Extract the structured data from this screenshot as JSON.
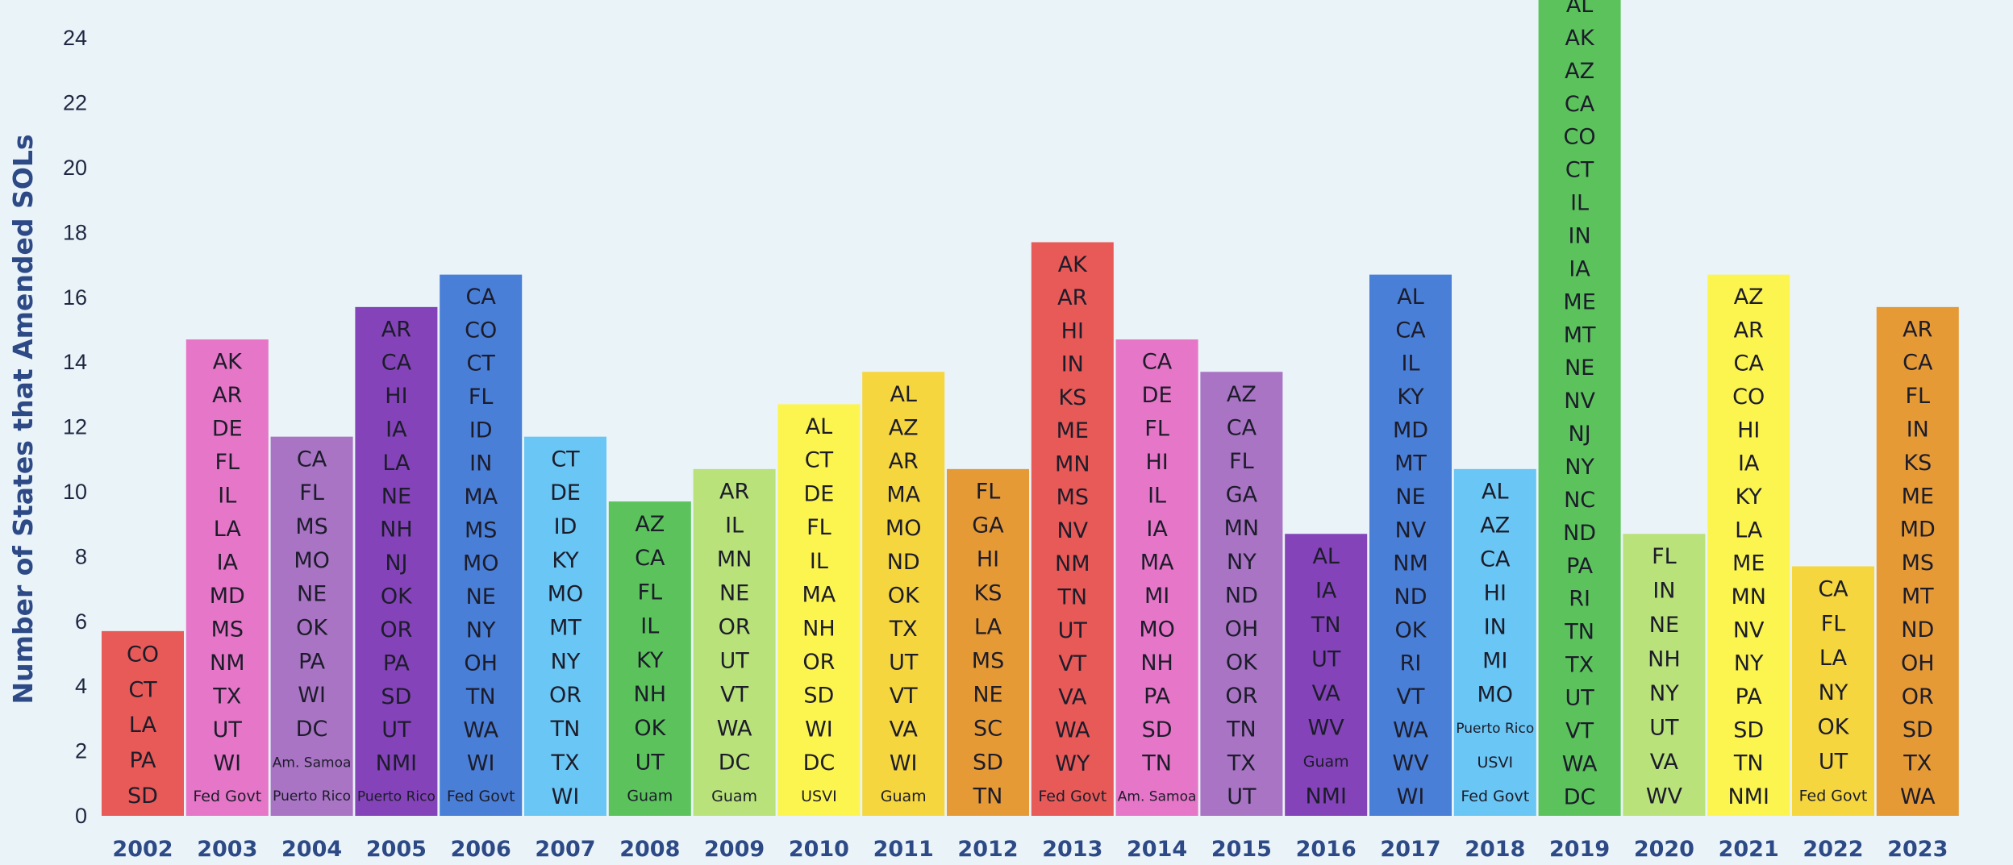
{
  "chart_data": {
    "type": "bar",
    "title": "",
    "xlabel": "",
    "ylabel": "Number of States that Amended SOLs",
    "ylim": [
      0,
      24
    ],
    "yticks": [
      0,
      2,
      4,
      6,
      8,
      10,
      12,
      14,
      16,
      18,
      20,
      22,
      24
    ],
    "grid": false,
    "legend": "none",
    "categories": [
      "2002",
      "2003",
      "2004",
      "2005",
      "2006",
      "2007",
      "2008",
      "2009",
      "2010",
      "2011",
      "2012",
      "2013",
      "2014",
      "2015",
      "2016",
      "2017",
      "2018",
      "2019",
      "2020",
      "2021",
      "2022",
      "2023"
    ],
    "values": [
      5,
      14,
      11,
      15,
      16,
      11,
      9,
      10,
      12,
      13,
      10,
      17,
      14,
      13,
      8,
      16,
      10,
      25,
      8,
      16,
      7,
      15
    ],
    "colors": [
      "#e85a57",
      "#e676c7",
      "#a974c4",
      "#8443b9",
      "#4a7fd7",
      "#6ac6f4",
      "#5cc35c",
      "#b9e27a",
      "#fdf54f",
      "#f6d63e",
      "#e69a35",
      "#e85a57",
      "#e676c7",
      "#a974c4",
      "#8443b9",
      "#4a7fd7",
      "#6ac6f4",
      "#5cc35c",
      "#b9e27a",
      "#fdf54f",
      "#f6d63e",
      "#e69a35"
    ],
    "states": [
      [
        "CO",
        "CT",
        "LA",
        "PA",
        "SD"
      ],
      [
        "AK",
        "AR",
        "DE",
        "FL",
        "IL",
        "LA",
        "IA",
        "MD",
        "MS",
        "NM",
        "TX",
        "UT",
        "WI",
        "Fed Govt"
      ],
      [
        "CA",
        "FL",
        "MS",
        "MO",
        "NE",
        "OK",
        "PA",
        "WI",
        "DC",
        "Am. Samoa",
        "Puerto Rico"
      ],
      [
        "AR",
        "CA",
        "HI",
        "IA",
        "LA",
        "NE",
        "NH",
        "NJ",
        "OK",
        "OR",
        "PA",
        "SD",
        "UT",
        "NMI",
        "Puerto Rico"
      ],
      [
        "CA",
        "CO",
        "CT",
        "FL",
        "ID",
        "IN",
        "MA",
        "MS",
        "MO",
        "NE",
        "NY",
        "OH",
        "TN",
        "WA",
        "WI",
        "Fed Govt"
      ],
      [
        "CT",
        "DE",
        "ID",
        "KY",
        "MO",
        "MT",
        "NY",
        "OR",
        "TN",
        "TX",
        "WI"
      ],
      [
        "AZ",
        "CA",
        "FL",
        "IL",
        "KY",
        "NH",
        "OK",
        "UT",
        "Guam"
      ],
      [
        "AR",
        "IL",
        "MN",
        "NE",
        "OR",
        "UT",
        "VT",
        "WA",
        "DC",
        "Guam"
      ],
      [
        "AL",
        "CT",
        "DE",
        "FL",
        "IL",
        "MA",
        "NH",
        "OR",
        "SD",
        "WI",
        "DC",
        "USVI"
      ],
      [
        "AL",
        "AZ",
        "AR",
        "MA",
        "MO",
        "ND",
        "OK",
        "TX",
        "UT",
        "VT",
        "VA",
        "WI",
        "Guam"
      ],
      [
        "FL",
        "GA",
        "HI",
        "KS",
        "LA",
        "MS",
        "NE",
        "SC",
        "SD",
        "TN"
      ],
      [
        "AK",
        "AR",
        "HI",
        "IN",
        "KS",
        "ME",
        "MN",
        "MS",
        "NV",
        "NM",
        "TN",
        "UT",
        "VT",
        "VA",
        "WA",
        "WY",
        "Fed Govt"
      ],
      [
        "CA",
        "DE",
        "FL",
        "HI",
        "IL",
        "IA",
        "MA",
        "MI",
        "MO",
        "NH",
        "PA",
        "SD",
        "TN",
        "Am. Samoa"
      ],
      [
        "AZ",
        "CA",
        "FL",
        "GA",
        "MN",
        "NY",
        "ND",
        "OH",
        "OK",
        "OR",
        "TN",
        "TX",
        "UT"
      ],
      [
        "AL",
        "IA",
        "TN",
        "UT",
        "VA",
        "WV",
        "Guam",
        "NMI"
      ],
      [
        "AL",
        "CA",
        "IL",
        "KY",
        "MD",
        "MT",
        "NE",
        "NV",
        "NM",
        "ND",
        "OK",
        "RI",
        "VT",
        "WA",
        "WV",
        "WI"
      ],
      [
        "AL",
        "AZ",
        "CA",
        "HI",
        "IN",
        "MI",
        "MO",
        "Puerto Rico",
        "USVI",
        "Fed Govt"
      ],
      [
        "AL",
        "AK",
        "AZ",
        "CA",
        "CO",
        "CT",
        "IL",
        "IN",
        "IA",
        "ME",
        "MT",
        "NE",
        "NV",
        "NJ",
        "NY",
        "NC",
        "ND",
        "PA",
        "RI",
        "TN",
        "TX",
        "UT",
        "VT",
        "WA",
        "DC"
      ],
      [
        "FL",
        "IN",
        "NE",
        "NH",
        "NY",
        "UT",
        "VA",
        "WV"
      ],
      [
        "AZ",
        "AR",
        "CA",
        "CO",
        "HI",
        "IA",
        "KY",
        "LA",
        "ME",
        "MN",
        "NV",
        "NY",
        "PA",
        "SD",
        "TN",
        "NMI"
      ],
      [
        "CA",
        "FL",
        "LA",
        "NY",
        "OK",
        "UT",
        "Fed Govt"
      ],
      [
        "AR",
        "CA",
        "FL",
        "IN",
        "KS",
        "ME",
        "MD",
        "MS",
        "MT",
        "ND",
        "OH",
        "OR",
        "SD",
        "TX",
        "WA"
      ]
    ]
  }
}
